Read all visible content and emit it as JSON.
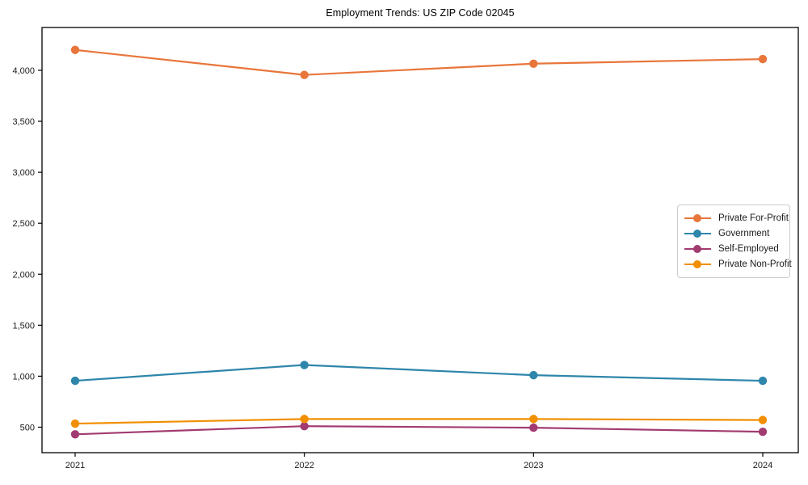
{
  "chart_data": {
    "type": "line",
    "title": "Employment Trends: US ZIP Code 02045",
    "categories": [
      "2021",
      "2022",
      "2023",
      "2024"
    ],
    "series": [
      {
        "name": "Private For-Profit",
        "color": "#E8763B",
        "values": [
          4200,
          3955,
          4065,
          4110
        ]
      },
      {
        "name": "Government",
        "color": "#2E86AB",
        "values": [
          955,
          1110,
          1010,
          955
        ]
      },
      {
        "name": "Self-Employed",
        "color": "#A23B72",
        "values": [
          430,
          510,
          495,
          455
        ]
      },
      {
        "name": "Private Non-Profit",
        "color": "#F18F01",
        "values": [
          535,
          580,
          580,
          570
        ]
      }
    ],
    "y_ticks": [
      500,
      1000,
      1500,
      2000,
      2500,
      3000,
      3500,
      4000
    ],
    "ylim": [
      250,
      4420
    ],
    "xlabel": "",
    "ylabel": "",
    "grid": false,
    "legend_position": "center right",
    "axis_color": "#000000",
    "legend_border_color": "#cccccc",
    "background_color": "#ffffff"
  }
}
